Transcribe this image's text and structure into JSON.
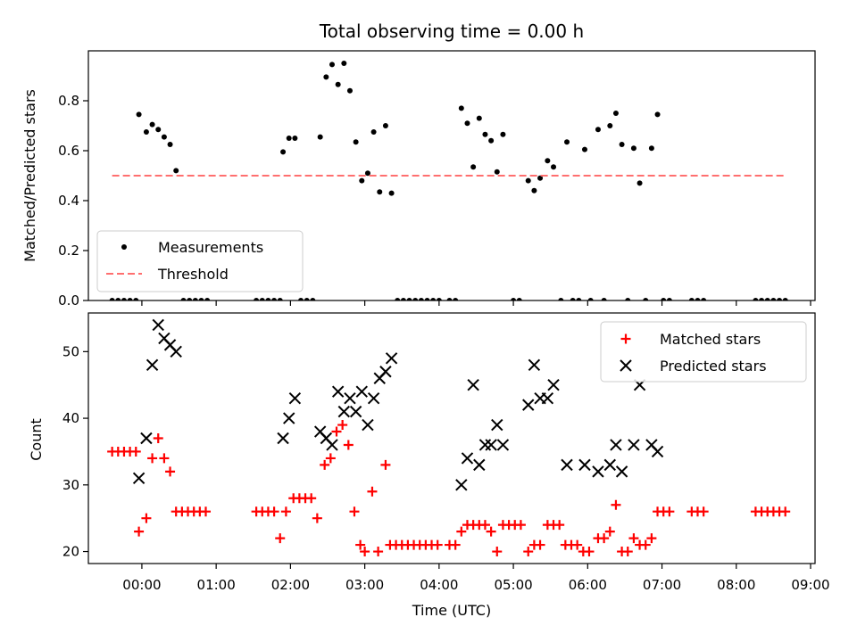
{
  "chart_data": [
    {
      "type": "scatter",
      "title": "Total observing time = 0.00 h",
      "xlabel": "",
      "ylabel": "Matched/Predicted stars",
      "xlim": [
        -0.72,
        9.06
      ],
      "ylim": [
        0.0,
        1.0
      ],
      "yticks": [
        0.0,
        0.2,
        0.4,
        0.6,
        0.8
      ],
      "ytick_labels": [
        "0.0",
        "0.2",
        "0.4",
        "0.6",
        "0.8"
      ],
      "legend_position": "lower-left",
      "series": [
        {
          "name": "Measurements",
          "marker": "dot",
          "color": "#000000",
          "points": [
            [
              -0.4,
              0.0
            ],
            [
              -0.32,
              0.0
            ],
            [
              -0.24,
              0.0
            ],
            [
              -0.16,
              0.0
            ],
            [
              -0.08,
              0.0
            ],
            [
              -0.04,
              0.745
            ],
            [
              0.06,
              0.675
            ],
            [
              0.14,
              0.705
            ],
            [
              0.22,
              0.685
            ],
            [
              0.3,
              0.655
            ],
            [
              0.38,
              0.625
            ],
            [
              0.46,
              0.52
            ],
            [
              0.56,
              0.0
            ],
            [
              0.64,
              0.0
            ],
            [
              0.72,
              0.0
            ],
            [
              0.8,
              0.0
            ],
            [
              0.88,
              0.0
            ],
            [
              1.54,
              0.0
            ],
            [
              1.62,
              0.0
            ],
            [
              1.7,
              0.0
            ],
            [
              1.78,
              0.0
            ],
            [
              1.86,
              0.0
            ],
            [
              1.9,
              0.595
            ],
            [
              1.98,
              0.65
            ],
            [
              2.06,
              0.65
            ],
            [
              2.14,
              0.0
            ],
            [
              2.22,
              0.0
            ],
            [
              2.3,
              0.0
            ],
            [
              2.4,
              0.655
            ],
            [
              2.48,
              0.895
            ],
            [
              2.56,
              0.945
            ],
            [
              2.64,
              0.865
            ],
            [
              2.72,
              0.95
            ],
            [
              2.8,
              0.84
            ],
            [
              2.88,
              0.635
            ],
            [
              2.96,
              0.48
            ],
            [
              3.04,
              0.51
            ],
            [
              3.12,
              0.675
            ],
            [
              3.2,
              0.435
            ],
            [
              3.28,
              0.7
            ],
            [
              3.36,
              0.43
            ],
            [
              3.44,
              0.0
            ],
            [
              3.52,
              0.0
            ],
            [
              3.6,
              0.0
            ],
            [
              3.68,
              0.0
            ],
            [
              3.76,
              0.0
            ],
            [
              3.84,
              0.0
            ],
            [
              3.92,
              0.0
            ],
            [
              4.0,
              0.0
            ],
            [
              4.14,
              0.0
            ],
            [
              4.22,
              0.0
            ],
            [
              4.3,
              0.77
            ],
            [
              4.38,
              0.71
            ],
            [
              4.46,
              0.535
            ],
            [
              4.54,
              0.73
            ],
            [
              4.62,
              0.665
            ],
            [
              4.7,
              0.64
            ],
            [
              4.78,
              0.515
            ],
            [
              4.86,
              0.665
            ],
            [
              5.0,
              0.0
            ],
            [
              5.08,
              0.0
            ],
            [
              5.2,
              0.48
            ],
            [
              5.28,
              0.44
            ],
            [
              5.36,
              0.49
            ],
            [
              5.46,
              0.56
            ],
            [
              5.54,
              0.535
            ],
            [
              5.64,
              0.0
            ],
            [
              5.72,
              0.635
            ],
            [
              5.8,
              0.0
            ],
            [
              5.88,
              0.0
            ],
            [
              5.96,
              0.605
            ],
            [
              6.04,
              0.0
            ],
            [
              6.14,
              0.685
            ],
            [
              6.22,
              0.0
            ],
            [
              6.3,
              0.7
            ],
            [
              6.38,
              0.75
            ],
            [
              6.46,
              0.625
            ],
            [
              6.54,
              0.0
            ],
            [
              6.62,
              0.61
            ],
            [
              6.7,
              0.47
            ],
            [
              6.78,
              0.0
            ],
            [
              6.86,
              0.61
            ],
            [
              6.94,
              0.745
            ],
            [
              7.02,
              0.0
            ],
            [
              7.1,
              0.0
            ],
            [
              7.4,
              0.0
            ],
            [
              7.48,
              0.0
            ],
            [
              7.56,
              0.0
            ],
            [
              8.26,
              0.0
            ],
            [
              8.34,
              0.0
            ],
            [
              8.42,
              0.0
            ],
            [
              8.5,
              0.0
            ],
            [
              8.58,
              0.0
            ],
            [
              8.66,
              0.0
            ]
          ]
        },
        {
          "name": "Threshold",
          "marker": "dashed-line",
          "color": "#ff6f6f",
          "points": [
            [
              -0.4,
              0.5
            ],
            [
              8.66,
              0.5
            ]
          ]
        }
      ]
    },
    {
      "type": "scatter",
      "title": "",
      "xlabel": "Time (UTC)",
      "ylabel": "Count",
      "xlim": [
        -0.72,
        9.06
      ],
      "ylim": [
        18.2,
        55.8
      ],
      "yticks": [
        20,
        30,
        40,
        50
      ],
      "ytick_labels": [
        "20",
        "30",
        "40",
        "50"
      ],
      "xticks": [
        0,
        1,
        2,
        3,
        4,
        5,
        6,
        7,
        8,
        9
      ],
      "xtick_labels": [
        "00:00",
        "01:00",
        "02:00",
        "03:00",
        "04:00",
        "05:00",
        "06:00",
        "07:00",
        "08:00",
        "09:00"
      ],
      "legend_position": "upper-right",
      "series": [
        {
          "name": "Matched stars",
          "marker": "plus",
          "color": "#ff0000",
          "points": [
            [
              -0.4,
              35
            ],
            [
              -0.32,
              35
            ],
            [
              -0.24,
              35
            ],
            [
              -0.16,
              35
            ],
            [
              -0.08,
              35
            ],
            [
              -0.04,
              23
            ],
            [
              0.06,
              25
            ],
            [
              0.14,
              34
            ],
            [
              0.22,
              37
            ],
            [
              0.3,
              34
            ],
            [
              0.38,
              32
            ],
            [
              0.46,
              26
            ],
            [
              0.54,
              26
            ],
            [
              0.62,
              26
            ],
            [
              0.7,
              26
            ],
            [
              0.78,
              26
            ],
            [
              0.86,
              26
            ],
            [
              1.54,
              26
            ],
            [
              1.62,
              26
            ],
            [
              1.7,
              26
            ],
            [
              1.78,
              26
            ],
            [
              1.86,
              22
            ],
            [
              1.94,
              26
            ],
            [
              2.04,
              28
            ],
            [
              2.12,
              28
            ],
            [
              2.2,
              28
            ],
            [
              2.28,
              28
            ],
            [
              2.36,
              25
            ],
            [
              2.46,
              33
            ],
            [
              2.54,
              34
            ],
            [
              2.62,
              38
            ],
            [
              2.7,
              39
            ],
            [
              2.78,
              36
            ],
            [
              2.86,
              26
            ],
            [
              2.94,
              21
            ],
            [
              3.0,
              20
            ],
            [
              3.1,
              29
            ],
            [
              3.18,
              20
            ],
            [
              3.28,
              33
            ],
            [
              3.34,
              21
            ],
            [
              3.42,
              21
            ],
            [
              3.5,
              21
            ],
            [
              3.58,
              21
            ],
            [
              3.66,
              21
            ],
            [
              3.74,
              21
            ],
            [
              3.82,
              21
            ],
            [
              3.9,
              21
            ],
            [
              3.98,
              21
            ],
            [
              4.14,
              21
            ],
            [
              4.22,
              21
            ],
            [
              4.3,
              23
            ],
            [
              4.38,
              24
            ],
            [
              4.46,
              24
            ],
            [
              4.54,
              24
            ],
            [
              4.62,
              24
            ],
            [
              4.7,
              23
            ],
            [
              4.78,
              20
            ],
            [
              4.86,
              24
            ],
            [
              4.94,
              24
            ],
            [
              5.02,
              24
            ],
            [
              5.1,
              24
            ],
            [
              5.2,
              20
            ],
            [
              5.28,
              21
            ],
            [
              5.36,
              21
            ],
            [
              5.46,
              24
            ],
            [
              5.54,
              24
            ],
            [
              5.62,
              24
            ],
            [
              5.7,
              21
            ],
            [
              5.78,
              21
            ],
            [
              5.86,
              21
            ],
            [
              5.94,
              20
            ],
            [
              6.02,
              20
            ],
            [
              6.14,
              22
            ],
            [
              6.22,
              22
            ],
            [
              6.3,
              23
            ],
            [
              6.38,
              27
            ],
            [
              6.46,
              20
            ],
            [
              6.54,
              20
            ],
            [
              6.62,
              22
            ],
            [
              6.7,
              21
            ],
            [
              6.78,
              21
            ],
            [
              6.86,
              22
            ],
            [
              6.94,
              26
            ],
            [
              7.02,
              26
            ],
            [
              7.1,
              26
            ],
            [
              7.4,
              26
            ],
            [
              7.48,
              26
            ],
            [
              7.56,
              26
            ],
            [
              8.26,
              26
            ],
            [
              8.34,
              26
            ],
            [
              8.42,
              26
            ],
            [
              8.5,
              26
            ],
            [
              8.58,
              26
            ],
            [
              8.66,
              26
            ]
          ]
        },
        {
          "name": "Predicted stars",
          "marker": "x",
          "color": "#000000",
          "points": [
            [
              -0.04,
              31
            ],
            [
              0.06,
              37
            ],
            [
              0.14,
              48
            ],
            [
              0.22,
              54
            ],
            [
              0.3,
              52
            ],
            [
              0.38,
              51
            ],
            [
              0.46,
              50
            ],
            [
              1.9,
              37
            ],
            [
              1.98,
              40
            ],
            [
              2.06,
              43
            ],
            [
              2.4,
              38
            ],
            [
              2.48,
              37
            ],
            [
              2.56,
              36
            ],
            [
              2.64,
              44
            ],
            [
              2.72,
              41
            ],
            [
              2.8,
              43
            ],
            [
              2.88,
              41
            ],
            [
              2.96,
              44
            ],
            [
              3.04,
              39
            ],
            [
              3.12,
              43
            ],
            [
              3.2,
              46
            ],
            [
              3.28,
              47
            ],
            [
              3.36,
              49
            ],
            [
              4.3,
              30
            ],
            [
              4.38,
              34
            ],
            [
              4.46,
              45
            ],
            [
              4.54,
              33
            ],
            [
              4.62,
              36
            ],
            [
              4.7,
              36
            ],
            [
              4.78,
              39
            ],
            [
              4.86,
              36
            ],
            [
              5.2,
              42
            ],
            [
              5.28,
              48
            ],
            [
              5.36,
              43
            ],
            [
              5.46,
              43
            ],
            [
              5.54,
              45
            ],
            [
              5.72,
              33
            ],
            [
              5.96,
              33
            ],
            [
              6.14,
              32
            ],
            [
              6.3,
              33
            ],
            [
              6.38,
              36
            ],
            [
              6.46,
              32
            ],
            [
              6.62,
              36
            ],
            [
              6.7,
              45
            ],
            [
              6.86,
              36
            ],
            [
              6.94,
              35
            ]
          ]
        }
      ]
    }
  ]
}
